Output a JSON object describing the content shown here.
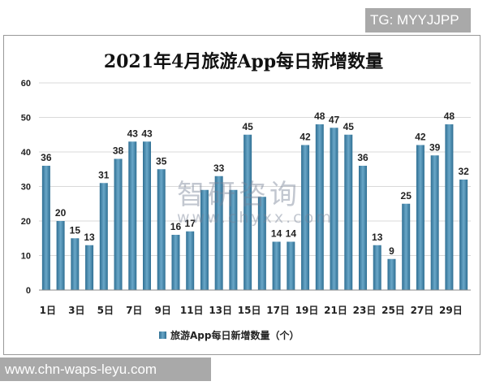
{
  "badge": "TG: MYYJJPP",
  "footer": "www.chn-waps-leyu.com",
  "watermark": {
    "name": "智研咨询",
    "url": "www.chyxx.com"
  },
  "chart_data": {
    "type": "bar",
    "title": "2021年4月旅游App每日新增数量",
    "categories": [
      "1日",
      "2日",
      "3日",
      "4日",
      "5日",
      "6日",
      "7日",
      "8日",
      "9日",
      "10日",
      "11日",
      "12日",
      "13日",
      "14日",
      "15日",
      "16日",
      "17日",
      "18日",
      "19日",
      "20日",
      "21日",
      "22日",
      "23日",
      "24日",
      "25日",
      "26日",
      "27日",
      "28日",
      "29日",
      "30日"
    ],
    "tick_labels": [
      "1日",
      "3日",
      "5日",
      "7日",
      "9日",
      "11日",
      "13日",
      "15日",
      "17日",
      "19日",
      "21日",
      "23日",
      "25日",
      "27日",
      "29日"
    ],
    "series": [
      {
        "name": "旅游App每日新增数量（个）",
        "values": [
          36,
          20,
          15,
          13,
          31,
          38,
          43,
          43,
          35,
          16,
          17,
          29,
          33,
          29,
          45,
          27,
          14,
          14,
          42,
          48,
          47,
          45,
          36,
          13,
          9,
          25,
          42,
          39,
          48,
          32
        ]
      }
    ],
    "hidden_labels": [
      12,
      14,
      16
    ],
    "ylim": [
      0,
      60
    ],
    "yticks": [
      0,
      10,
      20,
      30,
      40,
      50,
      60
    ],
    "grid": true,
    "legend": "bottom",
    "bar_color": "#4a8cb0"
  }
}
